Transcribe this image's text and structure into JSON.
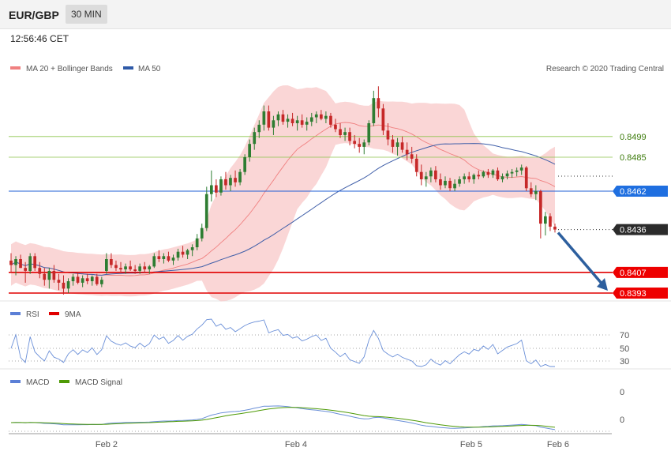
{
  "header": {
    "pair": "EUR/GBP",
    "timeframe": "30 MIN",
    "time": "12:56:46 CET"
  },
  "credit": "Research © 2020 Trading Central",
  "colors": {
    "bull": "#2e7d32",
    "bear": "#c62828",
    "bollinger": "#f8c8c8",
    "ma20": "#f08080",
    "ma50": "#3f5ea8",
    "resistance": "#8bc34a",
    "support": "#e00000",
    "pivot": "#1f5fd6",
    "rsi": "#6a8fd8",
    "macd": "#6a8fd8",
    "macd_signal": "#4e9a06",
    "arrow": "#2d5f9e"
  },
  "legend": {
    "main": [
      {
        "label": "MA 20 + Bollinger Bands",
        "color": "#f08080"
      },
      {
        "label": "MA 50",
        "color": "#2f5aa8"
      }
    ],
    "rsi": [
      {
        "label": "RSI",
        "color": "#5b7fd6"
      },
      {
        "label": "9MA",
        "color": "#e00000"
      }
    ],
    "macd": [
      {
        "label": "MACD",
        "color": "#5b7fd6"
      },
      {
        "label": "MACD Signal",
        "color": "#4e9a06"
      }
    ]
  },
  "levels": [
    {
      "value": 0.8499,
      "label": "0.8499",
      "kind": "resistance"
    },
    {
      "value": 0.8485,
      "label": "0.8485",
      "kind": "resistance"
    },
    {
      "value": 0.8462,
      "label": "0.8462",
      "kind": "pivot"
    },
    {
      "value": 0.8436,
      "label": "0.8436",
      "kind": "last"
    },
    {
      "value": 0.8407,
      "label": "0.8407",
      "kind": "support"
    },
    {
      "value": 0.8393,
      "label": "0.8393",
      "kind": "support"
    }
  ],
  "chart_data": {
    "type": "candlestick",
    "x_ticks": [
      "Feb 2",
      "Feb 4",
      "Feb 5",
      "Feb 6"
    ],
    "price_axis_range": [
      0.8385,
      0.8535
    ],
    "rsi_levels": [
      "70",
      "50",
      "30"
    ],
    "macd_levels": [
      "0",
      "0"
    ],
    "forecast": {
      "from": 0.8435,
      "to": 0.8393
    },
    "ohlc": [
      [
        0.8415,
        0.842,
        0.8407,
        0.8412
      ],
      [
        0.8412,
        0.8418,
        0.8405,
        0.8416
      ],
      [
        0.8416,
        0.8419,
        0.841,
        0.841
      ],
      [
        0.841,
        0.8414,
        0.84,
        0.8408
      ],
      [
        0.8408,
        0.842,
        0.8406,
        0.8418
      ],
      [
        0.8418,
        0.842,
        0.8408,
        0.841
      ],
      [
        0.841,
        0.8414,
        0.8403,
        0.8406
      ],
      [
        0.8406,
        0.841,
        0.8398,
        0.8402
      ],
      [
        0.8402,
        0.841,
        0.8396,
        0.8408
      ],
      [
        0.8408,
        0.8412,
        0.84,
        0.8402
      ],
      [
        0.8402,
        0.8406,
        0.8395,
        0.84
      ],
      [
        0.84,
        0.8405,
        0.8392,
        0.8396
      ],
      [
        0.8396,
        0.8403,
        0.8393,
        0.8401
      ],
      [
        0.8401,
        0.8406,
        0.8398,
        0.8404
      ],
      [
        0.8404,
        0.8407,
        0.8399,
        0.84
      ],
      [
        0.84,
        0.8405,
        0.8397,
        0.8403
      ],
      [
        0.8403,
        0.8406,
        0.8399,
        0.8401
      ],
      [
        0.8401,
        0.8405,
        0.8398,
        0.8404
      ],
      [
        0.8404,
        0.8406,
        0.8398,
        0.8399
      ],
      [
        0.8399,
        0.8404,
        0.8397,
        0.8402
      ],
      [
        0.8408,
        0.842,
        0.8406,
        0.8416
      ],
      [
        0.8416,
        0.842,
        0.841,
        0.8412
      ],
      [
        0.8412,
        0.8415,
        0.8408,
        0.841
      ],
      [
        0.841,
        0.8414,
        0.8407,
        0.8409
      ],
      [
        0.8409,
        0.8413,
        0.8406,
        0.8411
      ],
      [
        0.8411,
        0.8415,
        0.8408,
        0.8409
      ],
      [
        0.8409,
        0.8412,
        0.8406,
        0.8408
      ],
      [
        0.8408,
        0.8413,
        0.8406,
        0.8411
      ],
      [
        0.8411,
        0.8414,
        0.8407,
        0.8409
      ],
      [
        0.8409,
        0.8412,
        0.8406,
        0.8411
      ],
      [
        0.8411,
        0.842,
        0.841,
        0.8418
      ],
      [
        0.8418,
        0.8422,
        0.8414,
        0.8416
      ],
      [
        0.8416,
        0.842,
        0.8413,
        0.8418
      ],
      [
        0.8418,
        0.8421,
        0.8414,
        0.8415
      ],
      [
        0.8415,
        0.8419,
        0.8412,
        0.8417
      ],
      [
        0.8417,
        0.8423,
        0.8415,
        0.8421
      ],
      [
        0.8421,
        0.8425,
        0.8417,
        0.8419
      ],
      [
        0.8419,
        0.8423,
        0.8416,
        0.8422
      ],
      [
        0.8422,
        0.8426,
        0.8418,
        0.8424
      ],
      [
        0.8424,
        0.8433,
        0.8422,
        0.843
      ],
      [
        0.843,
        0.844,
        0.8428,
        0.8437
      ],
      [
        0.8437,
        0.8465,
        0.8435,
        0.846
      ],
      [
        0.846,
        0.8476,
        0.8455,
        0.8466
      ],
      [
        0.8466,
        0.847,
        0.8458,
        0.8461
      ],
      [
        0.8461,
        0.8472,
        0.8459,
        0.847
      ],
      [
        0.847,
        0.8475,
        0.8463,
        0.8466
      ],
      [
        0.8466,
        0.8473,
        0.8462,
        0.8471
      ],
      [
        0.8471,
        0.8476,
        0.8465,
        0.8468
      ],
      [
        0.8468,
        0.8477,
        0.8466,
        0.8475
      ],
      [
        0.8475,
        0.8487,
        0.8473,
        0.8485
      ],
      [
        0.8485,
        0.8497,
        0.8482,
        0.8494
      ],
      [
        0.8494,
        0.8505,
        0.849,
        0.8502
      ],
      [
        0.8502,
        0.851,
        0.8498,
        0.8507
      ],
      [
        0.8507,
        0.852,
        0.8503,
        0.8516
      ],
      [
        0.8516,
        0.852,
        0.8503,
        0.8505
      ],
      [
        0.8505,
        0.8513,
        0.85,
        0.851
      ],
      [
        0.851,
        0.8516,
        0.8506,
        0.8514
      ],
      [
        0.8514,
        0.8517,
        0.8507,
        0.8509
      ],
      [
        0.8509,
        0.8514,
        0.8505,
        0.8511
      ],
      [
        0.8511,
        0.8515,
        0.8506,
        0.8508
      ],
      [
        0.8508,
        0.8513,
        0.8503,
        0.851
      ],
      [
        0.851,
        0.8514,
        0.8505,
        0.8507
      ],
      [
        0.8507,
        0.8512,
        0.8503,
        0.8509
      ],
      [
        0.8509,
        0.8515,
        0.8506,
        0.8512
      ],
      [
        0.8512,
        0.8516,
        0.8508,
        0.8514
      ],
      [
        0.8514,
        0.8517,
        0.851,
        0.8511
      ],
      [
        0.8511,
        0.8516,
        0.8508,
        0.8513
      ],
      [
        0.8513,
        0.8515,
        0.8505,
        0.8507
      ],
      [
        0.8507,
        0.8511,
        0.8502,
        0.8504
      ],
      [
        0.8504,
        0.8508,
        0.8498,
        0.85
      ],
      [
        0.85,
        0.8505,
        0.8496,
        0.8502
      ],
      [
        0.8502,
        0.8505,
        0.8493,
        0.8496
      ],
      [
        0.8496,
        0.85,
        0.8491,
        0.8494
      ],
      [
        0.8494,
        0.8498,
        0.8488,
        0.8492
      ],
      [
        0.8492,
        0.8497,
        0.8487,
        0.8495
      ],
      [
        0.8495,
        0.851,
        0.8493,
        0.8508
      ],
      [
        0.8508,
        0.853,
        0.8506,
        0.8525
      ],
      [
        0.8525,
        0.8533,
        0.8512,
        0.8518
      ],
      [
        0.8518,
        0.8521,
        0.85,
        0.8503
      ],
      [
        0.8503,
        0.8508,
        0.8493,
        0.8497
      ],
      [
        0.8497,
        0.85,
        0.8488,
        0.8492
      ],
      [
        0.8492,
        0.8498,
        0.8486,
        0.8495
      ],
      [
        0.8495,
        0.8499,
        0.8488,
        0.849
      ],
      [
        0.849,
        0.8495,
        0.8483,
        0.8487
      ],
      [
        0.8487,
        0.8492,
        0.8481,
        0.8484
      ],
      [
        0.8484,
        0.8487,
        0.8472,
        0.8475
      ],
      [
        0.8475,
        0.848,
        0.8466,
        0.847
      ],
      [
        0.847,
        0.8475,
        0.8465,
        0.8472
      ],
      [
        0.8472,
        0.8478,
        0.8468,
        0.8476
      ],
      [
        0.8476,
        0.8479,
        0.8468,
        0.847
      ],
      [
        0.847,
        0.8474,
        0.8463,
        0.8466
      ],
      [
        0.8466,
        0.8472,
        0.8464,
        0.8469
      ],
      [
        0.8469,
        0.8471,
        0.8462,
        0.8464
      ],
      [
        0.8464,
        0.847,
        0.8462,
        0.8467
      ],
      [
        0.8467,
        0.8472,
        0.8465,
        0.847
      ],
      [
        0.847,
        0.8474,
        0.8467,
        0.8472
      ],
      [
        0.8472,
        0.8475,
        0.8468,
        0.847
      ],
      [
        0.847,
        0.8474,
        0.8467,
        0.8473
      ],
      [
        0.8473,
        0.8476,
        0.847,
        0.8472
      ],
      [
        0.8472,
        0.8476,
        0.8471,
        0.8475
      ],
      [
        0.8475,
        0.8477,
        0.8471,
        0.8473
      ],
      [
        0.8473,
        0.8477,
        0.8471,
        0.8476
      ],
      [
        0.8476,
        0.8478,
        0.8469,
        0.847
      ],
      [
        0.847,
        0.8474,
        0.8468,
        0.8472
      ],
      [
        0.8472,
        0.8476,
        0.847,
        0.8474
      ],
      [
        0.8474,
        0.8477,
        0.8471,
        0.8475
      ],
      [
        0.8475,
        0.8478,
        0.8472,
        0.8476
      ],
      [
        0.8476,
        0.848,
        0.8473,
        0.8478
      ],
      [
        0.8478,
        0.8479,
        0.8462,
        0.8464
      ],
      [
        0.8464,
        0.8468,
        0.8458,
        0.846
      ],
      [
        0.846,
        0.8466,
        0.8456,
        0.8462
      ],
      [
        0.8462,
        0.8463,
        0.843,
        0.844
      ],
      [
        0.844,
        0.8448,
        0.8432,
        0.8445
      ],
      [
        0.8445,
        0.8447,
        0.8435,
        0.8438
      ],
      [
        0.8438,
        0.844,
        0.8434,
        0.8436
      ]
    ]
  }
}
